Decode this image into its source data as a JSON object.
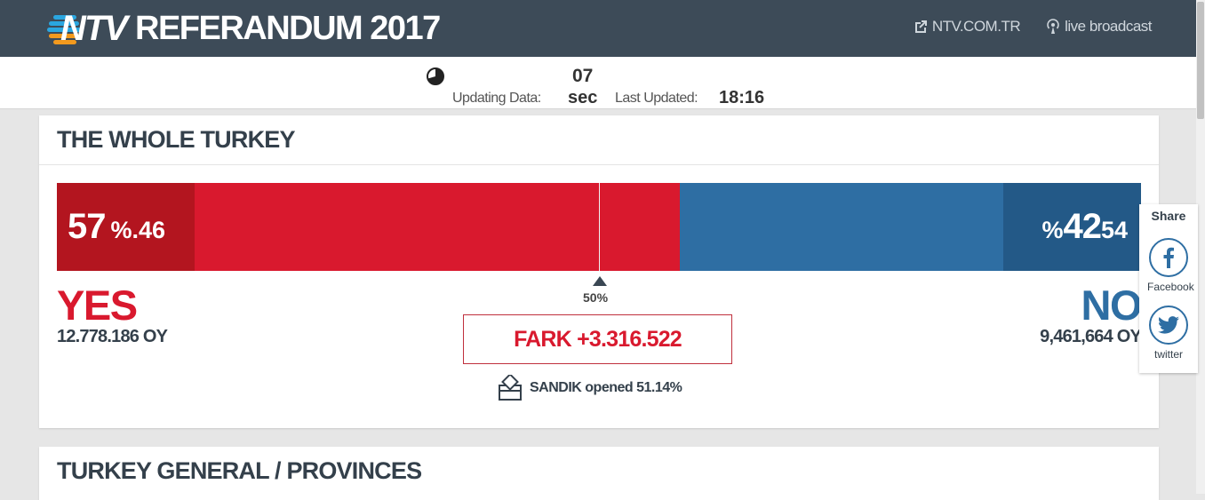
{
  "header": {
    "logo_text": "NTV",
    "title": "REFERANDUM 2017",
    "links": [
      {
        "label": "NTV.COM.TR",
        "icon": "external-link-icon"
      },
      {
        "label": "live broadcast",
        "icon": "broadcast-icon"
      }
    ]
  },
  "status": {
    "countdown_value": "07",
    "updating_label": "Updating Data:",
    "countdown_unit": "sec",
    "last_updated_label": "Last Updated:",
    "last_updated_time": "18:16"
  },
  "whole_turkey": {
    "title": "THE WHOLE TURKEY",
    "yes": {
      "percent": 57.46,
      "pct_main": "57",
      "pct_decimal": "%.46",
      "label": "YES",
      "votes": "12.778.186 OY",
      "color": "#d9192e"
    },
    "no": {
      "percent": 42.54,
      "pct_prefix": "%",
      "pct_main": "42",
      "pct_decimal": "54",
      "label": "NO",
      "votes": "9,461,664 OY",
      "color": "#2e6ea3"
    },
    "midpoint_label": "50%",
    "difference": "FARK +3.316.522",
    "ballot_status": "SANDIK opened 51.14%"
  },
  "provinces": {
    "title": "TURKEY GENERAL / PROVINCES"
  },
  "share": {
    "title": "Share",
    "buttons": [
      {
        "label": "Facebook",
        "icon": "facebook-icon"
      },
      {
        "label": "twitter",
        "icon": "twitter-icon"
      }
    ]
  }
}
